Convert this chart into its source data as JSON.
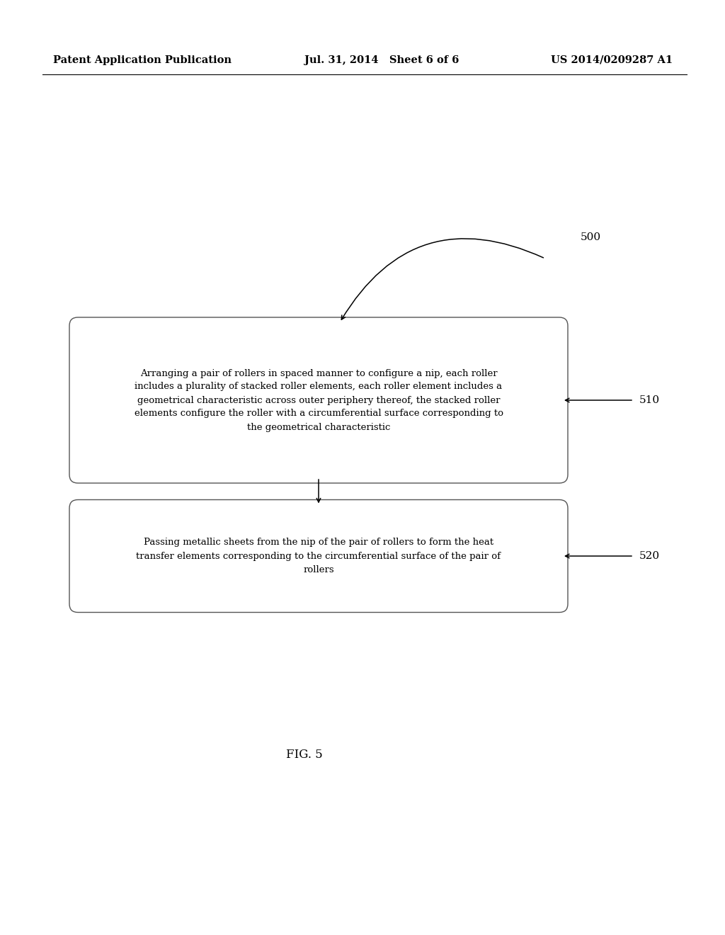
{
  "background_color": "#ffffff",
  "header_left": "Patent Application Publication",
  "header_mid": "Jul. 31, 2014   Sheet 6 of 6",
  "header_right": "US 2014/0209287 A1",
  "header_fontsize": 10.5,
  "label_500": "500",
  "label_510": "510",
  "label_520": "520",
  "box1_text": "Arranging a pair of rollers in spaced manner to configure a nip, each roller\nincludes a plurality of stacked roller elements, each roller element includes a\ngeometrical characteristic across outer periphery thereof, the stacked roller\nelements configure the roller with a circumferential surface corresponding to\nthe geometrical characteristic",
  "box2_text": "Passing metallic sheets from the nip of the pair of rollers to form the heat\ntransfer elements corresponding to the circumferential surface of the pair of\nrollers",
  "fig_label": "FIG. 5",
  "text_fontsize": 9.5,
  "fig_label_fontsize": 12
}
